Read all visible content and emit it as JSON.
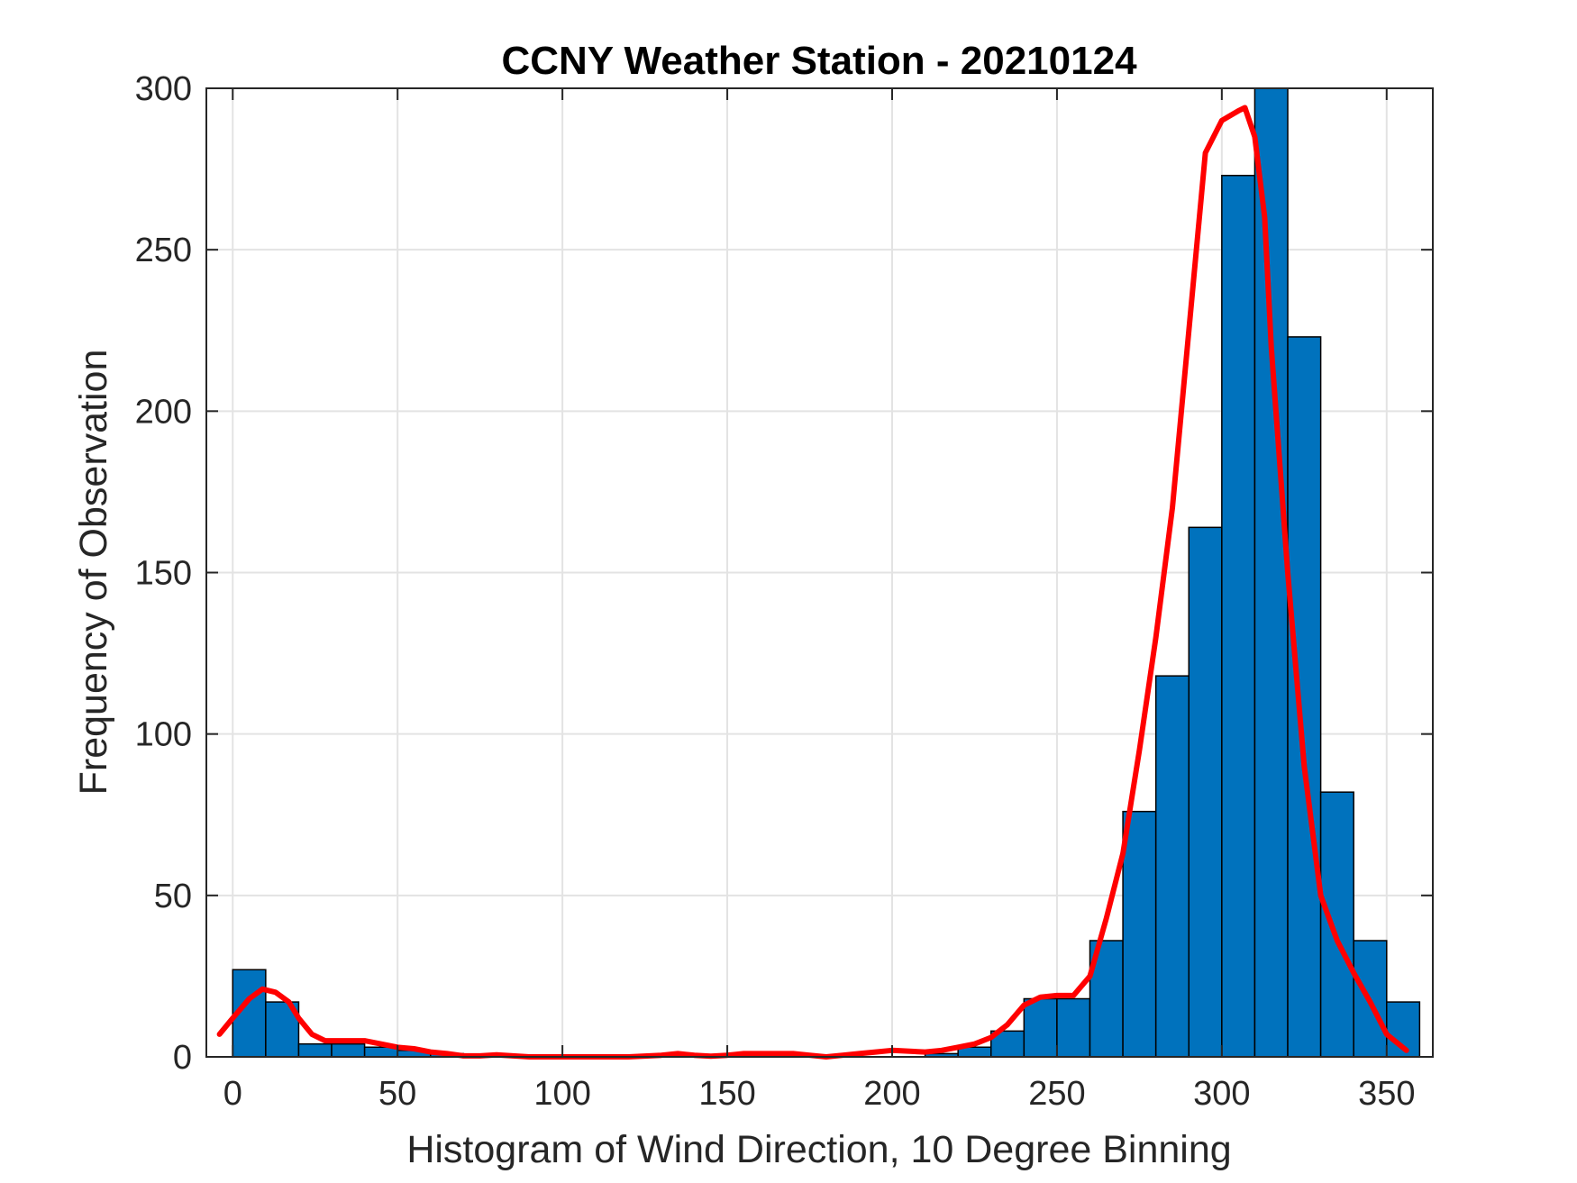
{
  "chart_data": {
    "type": "bar",
    "title": "CCNY Weather Station - 20210124",
    "xlabel": "Histogram of Wind Direction, 10 Degree Binning",
    "ylabel": "Frequency of Observation",
    "xlim": [
      -8,
      364
    ],
    "ylim": [
      0,
      300
    ],
    "xticks": [
      0,
      50,
      100,
      150,
      200,
      250,
      300,
      350
    ],
    "yticks": [
      0,
      50,
      100,
      150,
      200,
      250,
      300
    ],
    "grid": true,
    "bin_width": 10,
    "bin_edges": [
      0,
      10,
      20,
      30,
      40,
      50,
      60,
      70,
      80,
      90,
      100,
      110,
      120,
      130,
      140,
      150,
      160,
      170,
      180,
      190,
      200,
      210,
      220,
      230,
      240,
      250,
      260,
      270,
      280,
      290,
      300,
      310,
      320,
      330,
      340,
      350,
      360
    ],
    "counts": [
      27,
      17,
      4,
      4,
      3,
      2,
      1,
      0,
      0,
      0,
      0,
      0,
      0,
      0,
      0,
      0,
      0,
      0,
      0,
      0,
      0,
      1,
      3,
      8,
      18,
      18,
      36,
      76,
      118,
      164,
      273,
      300,
      223,
      82,
      36,
      17
    ],
    "bar_color": "#0072BD",
    "bar_edge_color": "#000000",
    "curve": {
      "color": "#FF0000",
      "x": [
        -4,
        0,
        5,
        9,
        13,
        17,
        20,
        24,
        28,
        32,
        36,
        40,
        45,
        50,
        55,
        60,
        65,
        70,
        75,
        80,
        90,
        100,
        110,
        120,
        130,
        135,
        140,
        145,
        150,
        155,
        160,
        170,
        175,
        180,
        185,
        190,
        195,
        200,
        210,
        215,
        220,
        225,
        230,
        235,
        240,
        245,
        250,
        255,
        260,
        265,
        270,
        275,
        280,
        285,
        290,
        295,
        300,
        305,
        307,
        310,
        313,
        315,
        320,
        325,
        330,
        335,
        340,
        345,
        350,
        356
      ],
      "y": [
        7,
        12,
        18,
        21,
        20,
        17,
        12,
        7,
        5,
        5,
        5,
        5,
        4,
        3,
        2.5,
        1.5,
        1,
        0.3,
        0.3,
        0.6,
        0,
        0,
        0,
        0,
        0.5,
        1,
        0.5,
        0.2,
        0.5,
        1,
        1,
        1,
        0.5,
        0,
        0.5,
        1,
        1.5,
        2,
        1.5,
        2,
        3,
        4,
        6,
        10,
        16,
        18.5,
        19,
        19,
        25,
        43,
        63,
        95,
        130,
        170,
        225,
        280,
        290,
        293,
        294,
        285,
        260,
        220,
        150,
        90,
        50,
        36,
        26,
        17,
        7,
        2
      ]
    }
  }
}
